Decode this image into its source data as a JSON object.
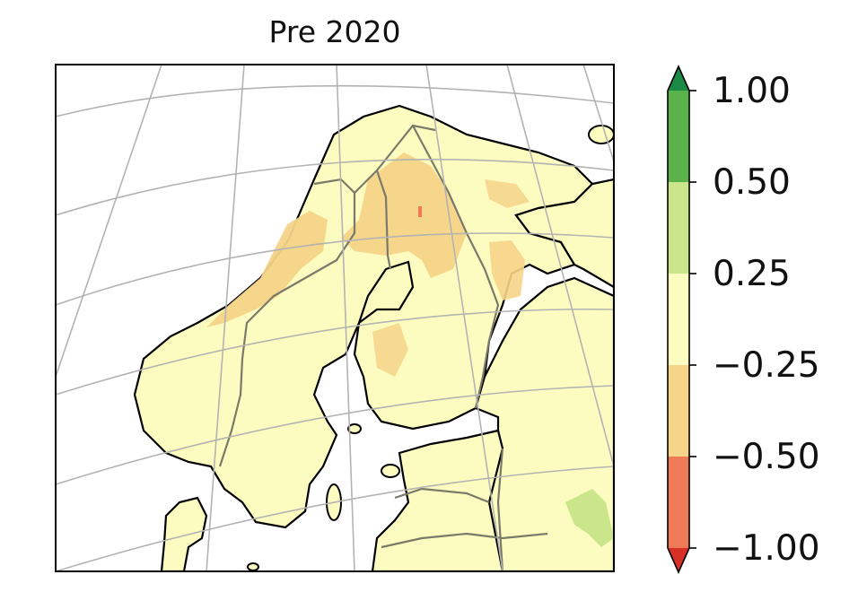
{
  "map": {
    "title": "Pre 2020",
    "region": "Fennoscandia and Baltic"
  },
  "colorbar": {
    "tick_labels": [
      "1.00",
      "0.50",
      "0.25",
      "−0.25",
      "−0.50",
      "−1.00"
    ],
    "bins": [
      {
        "from": 0.5,
        "to": 1.0,
        "color": "#5bb14a"
      },
      {
        "from": 0.25,
        "to": 0.5,
        "color": "#cbe58a"
      },
      {
        "from": -0.25,
        "to": 0.25,
        "color": "#fdfcc0"
      },
      {
        "from": -0.5,
        "to": -0.25,
        "color": "#f6d488"
      },
      {
        "from": -1.0,
        "to": -0.5,
        "color": "#ef7a58"
      }
    ],
    "extend_max_color": "#1a8a45",
    "extend_min_color": "#d73027"
  },
  "colors": {
    "land_fill": "#fdfcc0",
    "water": "#ffffff",
    "coastline": "#000000",
    "borders": "#7a7a6a",
    "graticule": "#b3b3b3",
    "orange_patch": "#f6d488",
    "red_patch": "#ef7a58",
    "green_patch": "#cbe58a"
  }
}
